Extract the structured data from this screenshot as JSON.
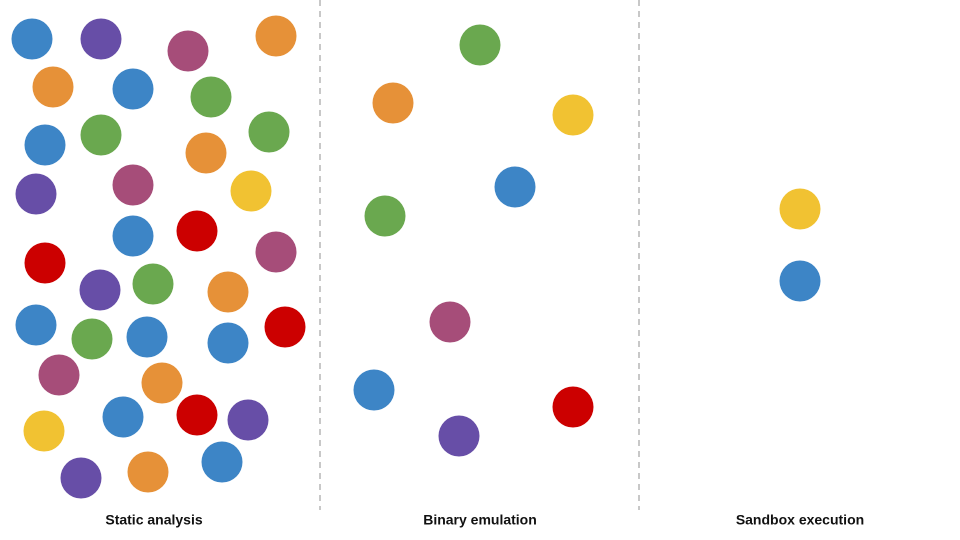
{
  "columns": [
    {
      "label": "Static analysis"
    },
    {
      "label": "Binary emulation"
    },
    {
      "label": "Sandbox execution"
    }
  ]
}
